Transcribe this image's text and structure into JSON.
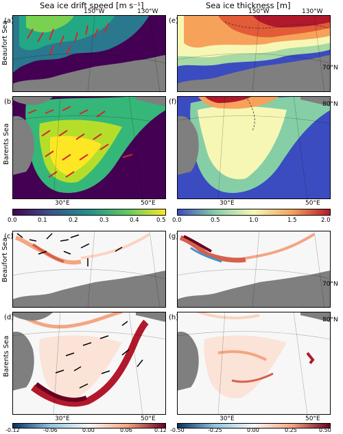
{
  "titles": {
    "drift_speed": "Sea ice drift speed [m s⁻¹]",
    "thickness": "Sea ice thickness [m]"
  },
  "row_labels": {
    "beaufort": "Beaufort Sea",
    "barents": "Barents Sea"
  },
  "panel_labels": [
    "(a)",
    "(b)",
    "(c)",
    "(d)",
    "(e)",
    "(f)",
    "(g)",
    "(h)"
  ],
  "coords": {
    "lon_150w": "150°W",
    "lon_130w": "130°W",
    "lon_30e": "30°E",
    "lon_50e": "50°E",
    "lat_70n": "70°N",
    "lat_80n": "80°N"
  },
  "colorbars": {
    "speed": {
      "ticks": [
        "0.0",
        "0.1",
        "0.2",
        "0.3",
        "0.4",
        "0.5"
      ],
      "colors": [
        "#440154",
        "#3b528b",
        "#21918c",
        "#5ec962",
        "#fde725"
      ]
    },
    "thickness": {
      "ticks": [
        "0.0",
        "0.5",
        "1.0",
        "1.5",
        "2.0"
      ],
      "colors": [
        "#3b4cc0",
        "#86cfa6",
        "#f7f7b5",
        "#f6a25b",
        "#b2182b"
      ]
    },
    "speed_diff": {
      "ticks": [
        "-0.12",
        "-0.06",
        "0.00",
        "0.06",
        "0.12"
      ],
      "colors": [
        "#053061",
        "#92c5de",
        "#f7f7f7",
        "#f4a582",
        "#67001f"
      ]
    },
    "thickness_diff": {
      "ticks": [
        "-0.50",
        "-0.25",
        "0.00",
        "0.25",
        "0.50"
      ],
      "colors": [
        "#053061",
        "#92c5de",
        "#f7f7f7",
        "#f4a582",
        "#67001f"
      ]
    }
  }
}
